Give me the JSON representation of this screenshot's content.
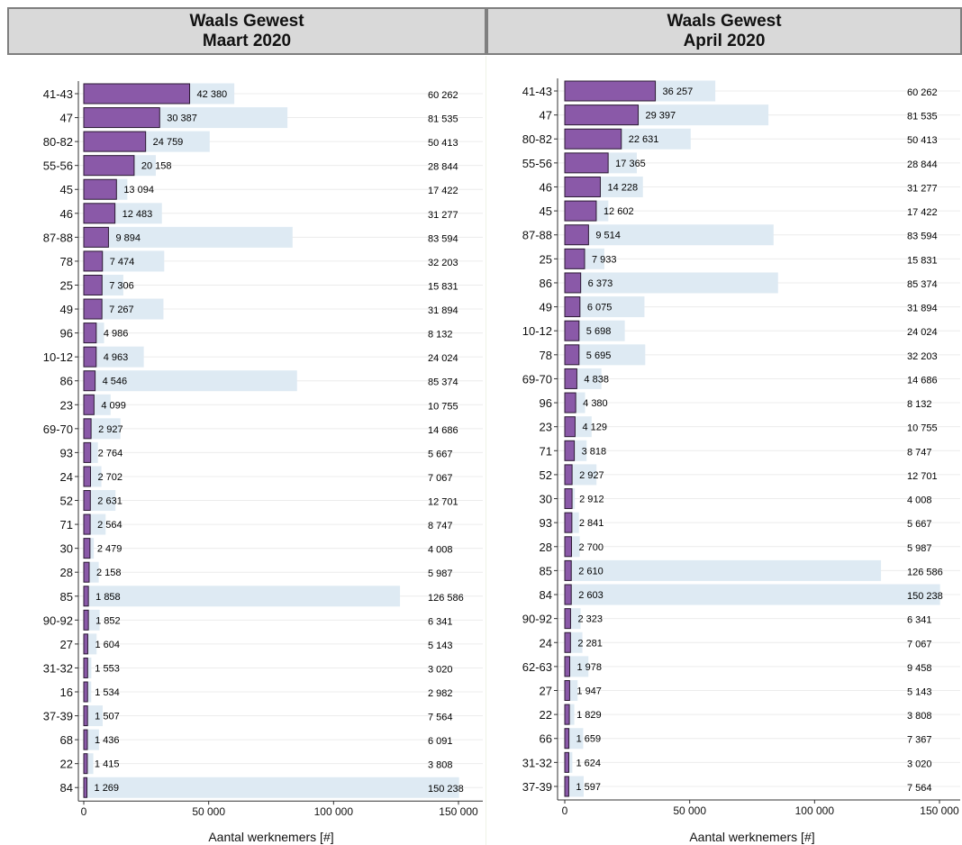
{
  "colors": {
    "base": "#deeaf3",
    "bar": "#8a59a8",
    "bar_stroke": "#2b1a33",
    "grid": "#ececec"
  },
  "chart_data": [
    {
      "type": "bar",
      "orientation": "horizontal",
      "panel_title_line1": "Waals Gewest",
      "panel_title_line2": "Maart 2020",
      "xlabel": "Aantal werknemers [#]",
      "xlim": [
        0,
        150000
      ],
      "xticks": [
        0,
        50000,
        100000,
        150000
      ],
      "xtick_labels": [
        "0",
        "50 000",
        "100 000",
        "150 000"
      ],
      "grid": "horizontal",
      "categories": [
        "41-43",
        "47",
        "80-82",
        "55-56",
        "45",
        "46",
        "87-88",
        "78",
        "25",
        "49",
        "96",
        "10-12",
        "86",
        "23",
        "69-70",
        "93",
        "24",
        "52",
        "71",
        "30",
        "28",
        "85",
        "90-92",
        "27",
        "31-32",
        "16",
        "37-39",
        "68",
        "22",
        "84"
      ],
      "value_labels": [
        "42 380",
        "30 387",
        "24 759",
        "20 158",
        "13 094",
        "12 483",
        "9 894",
        "7 474",
        "7 306",
        "7 267",
        "4 986",
        "4 963",
        "4 546",
        "4 099",
        "2 927",
        "2 764",
        "2 702",
        "2 631",
        "2 564",
        "2 479",
        "2 158",
        "1 858",
        "1 852",
        "1 604",
        "1 553",
        "1 534",
        "1 507",
        "1 436",
        "1 415",
        "1 269"
      ],
      "total_labels": [
        "60 262",
        "81 535",
        "50 413",
        "28 844",
        "17 422",
        "31 277",
        "83 594",
        "32 203",
        "15 831",
        "31 894",
        "8 132",
        "24 024",
        "85 374",
        "10 755",
        "14 686",
        "5 667",
        "7 067",
        "12 701",
        "8 747",
        "4 008",
        "5 987",
        "126 586",
        "6 341",
        "5 143",
        "3 020",
        "2 982",
        "7 564",
        "6 091",
        "3 808",
        "150 238"
      ],
      "series": [
        {
          "values": [
            42380,
            30387,
            24759,
            20158,
            13094,
            12483,
            9894,
            7474,
            7306,
            7267,
            4986,
            4963,
            4546,
            4099,
            2927,
            2764,
            2702,
            2631,
            2564,
            2479,
            2158,
            1858,
            1852,
            1604,
            1553,
            1534,
            1507,
            1436,
            1415,
            1269
          ]
        },
        {
          "values": [
            60262,
            81535,
            50413,
            28844,
            17422,
            31277,
            83594,
            32203,
            15831,
            31894,
            8132,
            24024,
            85374,
            10755,
            14686,
            5667,
            7067,
            12701,
            8747,
            4008,
            5987,
            126586,
            6341,
            5143,
            3020,
            2982,
            7564,
            6091,
            3808,
            150238
          ]
        }
      ]
    },
    {
      "type": "bar",
      "orientation": "horizontal",
      "panel_title_line1": "Waals Gewest",
      "panel_title_line2": "April 2020",
      "xlabel": "Aantal werknemers [#]",
      "xlim": [
        0,
        150000
      ],
      "xticks": [
        0,
        50000,
        100000,
        150000
      ],
      "xtick_labels": [
        "0",
        "50 000",
        "100 000",
        "150 000"
      ],
      "grid": "horizontal",
      "categories": [
        "41-43",
        "47",
        "80-82",
        "55-56",
        "46",
        "45",
        "87-88",
        "25",
        "86",
        "49",
        "10-12",
        "78",
        "69-70",
        "96",
        "23",
        "71",
        "52",
        "30",
        "93",
        "28",
        "85",
        "84",
        "90-92",
        "24",
        "62-63",
        "27",
        "22",
        "66",
        "31-32",
        "37-39"
      ],
      "value_labels": [
        "36 257",
        "29 397",
        "22 631",
        "17 365",
        "14 228",
        "12 602",
        "9 514",
        "7 933",
        "6 373",
        "6 075",
        "5 698",
        "5 695",
        "4 838",
        "4 380",
        "4 129",
        "3 818",
        "2 927",
        "2 912",
        "2 841",
        "2 700",
        "2 610",
        "2 603",
        "2 323",
        "2 281",
        "1 978",
        "1 947",
        "1 829",
        "1 659",
        "1 624",
        "1 597"
      ],
      "total_labels": [
        "60 262",
        "81 535",
        "50 413",
        "28 844",
        "31 277",
        "17 422",
        "83 594",
        "15 831",
        "85 374",
        "31 894",
        "24 024",
        "32 203",
        "14 686",
        "8 132",
        "10 755",
        "8 747",
        "12 701",
        "4 008",
        "5 667",
        "5 987",
        "126 586",
        "150 238",
        "6 341",
        "7 067",
        "9 458",
        "5 143",
        "3 808",
        "7 367",
        "3 020",
        "7 564"
      ],
      "series": [
        {
          "values": [
            36257,
            29397,
            22631,
            17365,
            14228,
            12602,
            9514,
            7933,
            6373,
            6075,
            5698,
            5695,
            4838,
            4380,
            4129,
            3818,
            2927,
            2912,
            2841,
            2700,
            2610,
            2603,
            2323,
            2281,
            1978,
            1947,
            1829,
            1659,
            1624,
            1597
          ]
        },
        {
          "values": [
            60262,
            81535,
            50413,
            28844,
            31277,
            17422,
            83594,
            15831,
            85374,
            31894,
            24024,
            32203,
            14686,
            8132,
            10755,
            8747,
            12701,
            4008,
            5667,
            5987,
            126586,
            150238,
            6341,
            7067,
            9458,
            5143,
            3808,
            7367,
            3020,
            7564
          ]
        }
      ]
    }
  ]
}
